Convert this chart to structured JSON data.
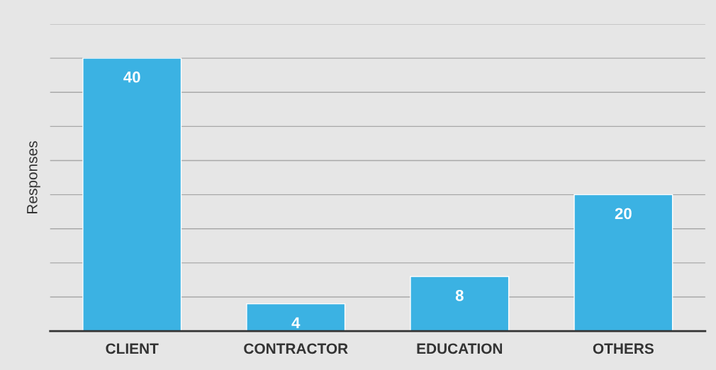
{
  "chart_data": {
    "type": "bar",
    "ylabel": "Responses",
    "categories": [
      "CLIENT",
      "CONTRACTOR",
      "EDUCATION",
      "OTHERS"
    ],
    "values": [
      40,
      4,
      8,
      20
    ],
    "color": "#3bb2e3",
    "data_labels": true,
    "ylim": [
      0,
      45
    ],
    "yticks": [
      {
        "value": 0,
        "label": null
      },
      {
        "value": 5,
        "label": null
      },
      {
        "value": 10,
        "label": null
      },
      {
        "value": 15,
        "label": null
      },
      {
        "value": 20,
        "label": null
      },
      {
        "value": 25,
        "label": null
      },
      {
        "value": 30,
        "label": null
      },
      {
        "value": 35,
        "label": null
      },
      {
        "value": 40,
        "label": null
      },
      {
        "value": 45,
        "label": null
      }
    ],
    "grid": "y",
    "tick_labels": "x",
    "legend": false
  }
}
